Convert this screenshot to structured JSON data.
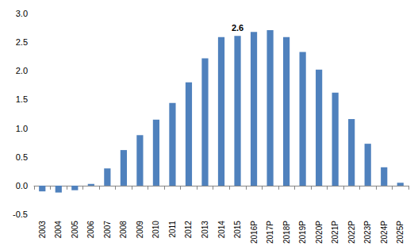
{
  "chart_data": {
    "type": "bar",
    "categories": [
      "2003",
      "2004",
      "2005",
      "2006",
      "2007",
      "2008",
      "2009",
      "2010",
      "2011",
      "2012",
      "2013",
      "2014",
      "2015",
      "2016P",
      "2017P",
      "2018P",
      "2019P",
      "2020P",
      "2021P",
      "2022P",
      "2023P",
      "2024P",
      "2025P"
    ],
    "values": [
      -0.1,
      -0.12,
      -0.08,
      0.03,
      0.3,
      0.62,
      0.88,
      1.15,
      1.44,
      1.8,
      2.22,
      2.59,
      2.61,
      2.68,
      2.71,
      2.59,
      2.33,
      2.02,
      1.62,
      1.16,
      0.73,
      0.32,
      0.05
    ],
    "color": "#4f81bd",
    "ylim": [
      -0.5,
      3.0
    ],
    "yticks": [
      -0.5,
      {
        "value": 0,
        "label": "0.0"
      },
      0.5,
      {
        "value": 1,
        "label": "1.0"
      },
      1.5,
      {
        "value": 2,
        "label": "2.0"
      },
      2.5,
      {
        "value": 3,
        "label": "3.0"
      }
    ],
    "grid": false,
    "annotations": [
      {
        "x": "2015",
        "text": "2.6"
      }
    ]
  }
}
